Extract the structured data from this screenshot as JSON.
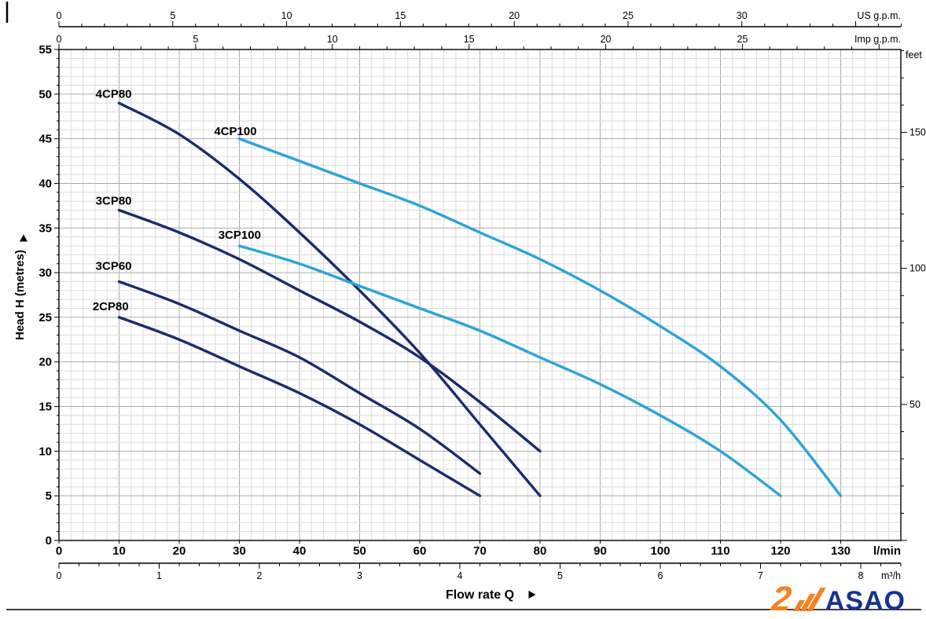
{
  "logo": {
    "glyph": "2",
    "text": "ASAO",
    "orange": "#F58220",
    "navy": "#16338E"
  },
  "chart_data": {
    "type": "line",
    "xlabel": "Flow rate  Q",
    "ylabel": "Head H (metres)",
    "grid": true,
    "legend": "labels-on-curves",
    "axes": {
      "x_max_lmin": 140,
      "y_max_m": 55,
      "x_bottom_lmin": {
        "unit": "l/min",
        "ticks": [
          0,
          10,
          20,
          30,
          40,
          50,
          60,
          70,
          80,
          90,
          100,
          110,
          120,
          130
        ]
      },
      "x_bottom_m3h": {
        "unit": "m³/h",
        "ticks": [
          0,
          1,
          2,
          3,
          4,
          5,
          6,
          7,
          8
        ]
      },
      "x_top_us": {
        "unit": "US g.p.m.",
        "ticks": [
          0,
          5,
          10,
          15,
          20,
          25,
          30
        ]
      },
      "x_top_imp": {
        "unit": "Imp g.p.m.",
        "ticks": [
          0,
          5,
          10,
          15,
          20,
          25
        ]
      },
      "y_left_m": {
        "unit": "metres",
        "ticks": [
          0,
          5,
          10,
          15,
          20,
          25,
          30,
          35,
          40,
          45,
          50,
          55
        ]
      },
      "y_right_feet": {
        "unit": "feet",
        "ticks": [
          50,
          100,
          150
        ]
      },
      "conversions": {
        "us_gpm_to_lmin": 3.78541,
        "imp_gpm_to_lmin": 4.54609,
        "m3h_to_lmin": 16.6667,
        "feet_to_m": 0.3048
      }
    },
    "colors": {
      "dark_blue": "#1C2B6E",
      "light_blue": "#2AA4DC"
    },
    "series": [
      {
        "name": "4CP80",
        "color": "dark_blue",
        "label_pos": [
          6.1,
          49.6
        ],
        "points": [
          [
            10,
            49
          ],
          [
            20,
            45.5
          ],
          [
            30,
            40.5
          ],
          [
            40,
            34.5
          ],
          [
            50,
            28
          ],
          [
            60,
            21
          ],
          [
            70,
            13
          ],
          [
            80,
            5
          ]
        ]
      },
      {
        "name": "4CP100",
        "color": "light_blue",
        "label_pos": [
          25.8,
          45.4
        ],
        "points": [
          [
            30,
            45
          ],
          [
            40,
            42.5
          ],
          [
            50,
            40
          ],
          [
            60,
            37.5
          ],
          [
            70,
            34.5
          ],
          [
            80,
            31.5
          ],
          [
            90,
            28
          ],
          [
            100,
            24
          ],
          [
            110,
            19.5
          ],
          [
            120,
            13.5
          ],
          [
            130,
            5
          ]
        ]
      },
      {
        "name": "3CP80",
        "color": "dark_blue",
        "label_pos": [
          6.1,
          37.6
        ],
        "points": [
          [
            10,
            37
          ],
          [
            20,
            34.5
          ],
          [
            30,
            31.5
          ],
          [
            40,
            28
          ],
          [
            50,
            24.5
          ],
          [
            60,
            20.5
          ],
          [
            70,
            15.5
          ],
          [
            80,
            10
          ]
        ]
      },
      {
        "name": "3CP100",
        "color": "light_blue",
        "label_pos": [
          26.5,
          33.8
        ],
        "points": [
          [
            30,
            33
          ],
          [
            40,
            31
          ],
          [
            50,
            28.5
          ],
          [
            60,
            26
          ],
          [
            70,
            23.5
          ],
          [
            80,
            20.5
          ],
          [
            90,
            17.5
          ],
          [
            100,
            14
          ],
          [
            110,
            10
          ],
          [
            120,
            5
          ]
        ]
      },
      {
        "name": "3CP60",
        "color": "dark_blue",
        "label_pos": [
          6.1,
          30.3
        ],
        "points": [
          [
            10,
            29
          ],
          [
            20,
            26.5
          ],
          [
            30,
            23.5
          ],
          [
            40,
            20.5
          ],
          [
            50,
            16.5
          ],
          [
            60,
            12.5
          ],
          [
            70,
            7.5
          ]
        ]
      },
      {
        "name": "2CP80",
        "color": "dark_blue",
        "label_pos": [
          5.6,
          25.8
        ],
        "points": [
          [
            10,
            25
          ],
          [
            20,
            22.5
          ],
          [
            30,
            19.5
          ],
          [
            40,
            16.5
          ],
          [
            50,
            13
          ],
          [
            60,
            9
          ],
          [
            70,
            5
          ]
        ]
      }
    ]
  }
}
